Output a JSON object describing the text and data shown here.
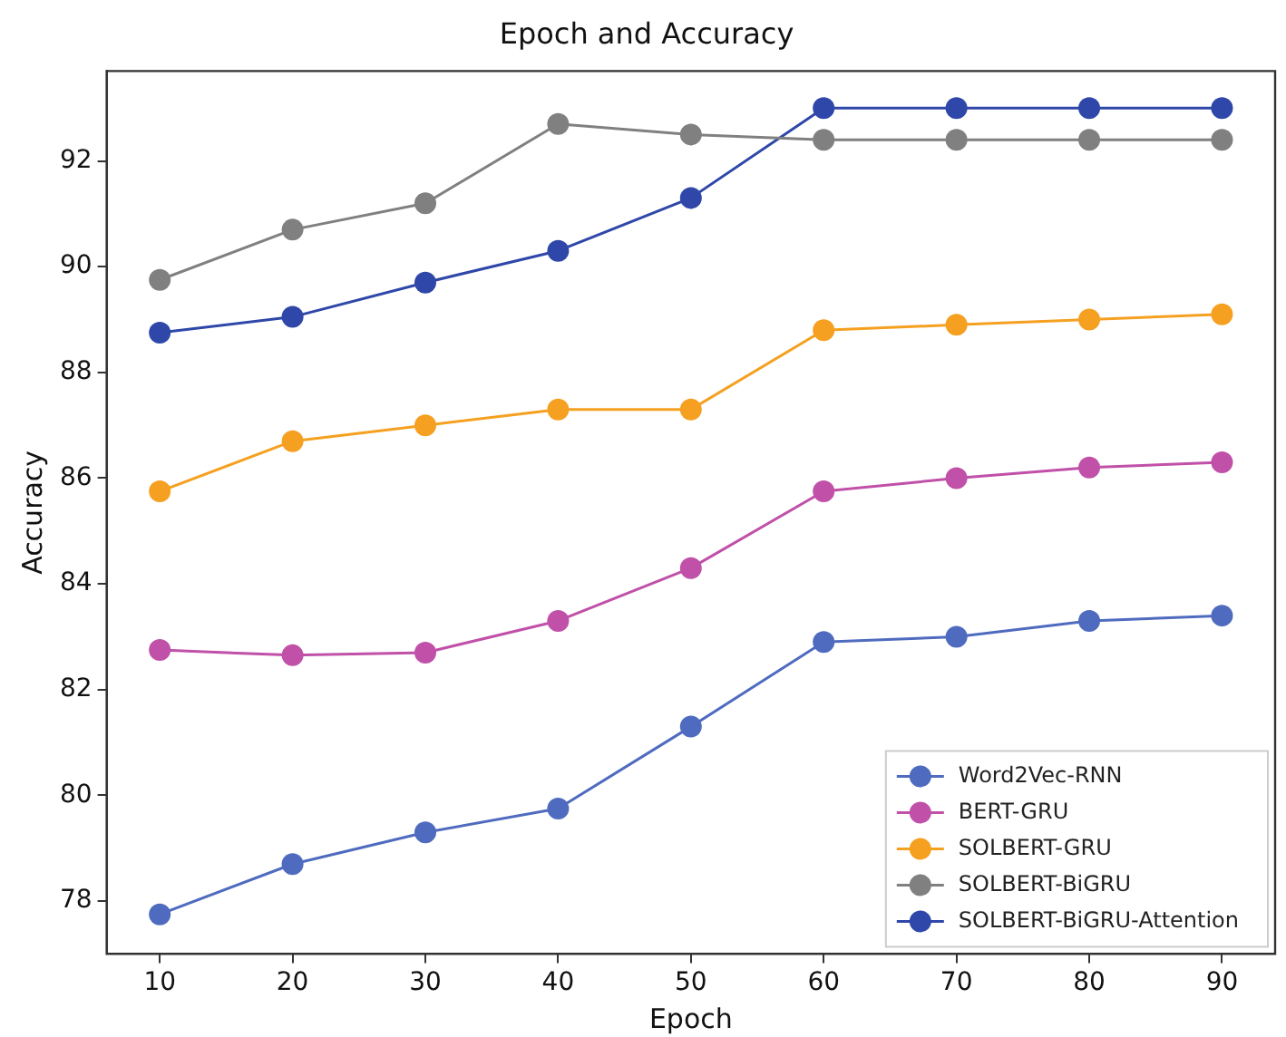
{
  "chart_data": {
    "type": "line",
    "title": "Epoch and Accuracy",
    "xlabel": "Epoch",
    "ylabel": "Accuracy",
    "x": [
      10,
      20,
      30,
      40,
      50,
      60,
      70,
      80,
      90
    ],
    "xlim": [
      6,
      94
    ],
    "xticks": [
      10,
      20,
      30,
      40,
      50,
      60,
      70,
      80,
      90
    ],
    "ylim": [
      77,
      93.7
    ],
    "yticks": [
      78,
      80,
      82,
      84,
      86,
      88,
      90,
      92
    ],
    "grid": false,
    "legend": "bottom right",
    "marker": "circle",
    "line_style": "solid",
    "series": [
      {
        "name": "Word2Vec-RNN",
        "color": "#4f6bbf",
        "values": [
          77.75,
          78.7,
          79.3,
          79.75,
          81.3,
          82.9,
          83.0,
          83.3,
          83.4
        ]
      },
      {
        "name": "BERT-GRU",
        "color": "#c050a8",
        "values": [
          82.75,
          82.65,
          82.7,
          83.3,
          84.3,
          85.75,
          86.0,
          86.2,
          86.3
        ]
      },
      {
        "name": "SOLBERT-GRU",
        "color": "#f5a020",
        "values": [
          85.75,
          86.7,
          87.0,
          87.3,
          87.3,
          88.8,
          88.9,
          89.0,
          89.1
        ]
      },
      {
        "name": "SOLBERT-BiGRU",
        "color": "#808080",
        "values": [
          89.75,
          90.7,
          91.2,
          92.7,
          92.5,
          92.4,
          92.4,
          92.4,
          92.4
        ]
      },
      {
        "name": "SOLBERT-BiGRU-Attention",
        "color": "#2e47a8",
        "values": [
          88.75,
          89.05,
          89.7,
          90.3,
          91.3,
          93.0,
          93.0,
          93.0,
          93.0
        ]
      }
    ]
  }
}
